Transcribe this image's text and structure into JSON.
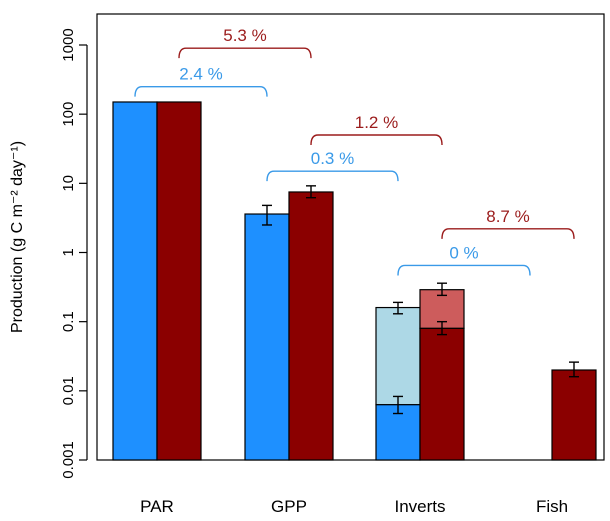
{
  "chart_data": {
    "type": "bar",
    "scale": "log",
    "ylim": [
      0.001,
      2000
    ],
    "ylabel": "Production (g C m⁻² day⁻¹)",
    "y_ticks": [
      {
        "value": 0.001,
        "label": "0.001"
      },
      {
        "value": 0.01,
        "label": "0.01"
      },
      {
        "value": 0.1,
        "label": "0.1"
      },
      {
        "value": 1,
        "label": "1"
      },
      {
        "value": 10,
        "label": "10"
      },
      {
        "value": 100,
        "label": "100"
      },
      {
        "value": 1000,
        "label": "1000"
      }
    ],
    "categories": [
      "PAR",
      "GPP",
      "Inverts",
      "Fish"
    ],
    "colors": {
      "blue": "#1e90ff",
      "red": "#8b0000",
      "blue_light": "#add8e6",
      "red_light": "#cd5c5c",
      "blue_label": "#3a9ae8",
      "red_label": "#9b1c1c"
    },
    "bars": [
      {
        "category": "PAR",
        "series": "blue",
        "value": 150,
        "base": 0.001,
        "fill": "blue"
      },
      {
        "category": "PAR",
        "series": "red",
        "value": 150,
        "base": 0.001,
        "fill": "red"
      },
      {
        "category": "GPP",
        "series": "blue",
        "value": 3.6,
        "base": 0.001,
        "fill": "blue",
        "err": [
          2.5,
          4.8
        ]
      },
      {
        "category": "GPP",
        "series": "red",
        "value": 7.5,
        "base": 0.001,
        "fill": "red",
        "err": [
          6.2,
          9.2
        ]
      },
      {
        "category": "Inverts",
        "series": "blue",
        "value": 0.16,
        "base": 0.0063,
        "fill": "blue_light",
        "err": [
          0.13,
          0.19
        ]
      },
      {
        "category": "Inverts",
        "series": "blue",
        "value": 0.0063,
        "base": 0.001,
        "fill": "blue",
        "err": [
          0.0047,
          0.0083
        ]
      },
      {
        "category": "Inverts",
        "series": "red",
        "value": 0.29,
        "base": 0.08,
        "fill": "red_light",
        "err": [
          0.24,
          0.36
        ]
      },
      {
        "category": "Inverts",
        "series": "red",
        "value": 0.08,
        "base": 0.001,
        "fill": "red",
        "err": [
          0.065,
          0.1
        ]
      },
      {
        "category": "Fish",
        "series": "red",
        "value": 0.02,
        "base": 0.001,
        "fill": "red",
        "err": [
          0.016,
          0.026
        ]
      }
    ],
    "annotations": [
      {
        "label": "2.4 %",
        "color": "blue_label",
        "from": "PAR",
        "to": "GPP",
        "series": "blue",
        "y": 250
      },
      {
        "label": "5.3 %",
        "color": "red_label",
        "from": "PAR",
        "to": "GPP",
        "series": "red",
        "y": 900
      },
      {
        "label": "0.3 %",
        "color": "blue_label",
        "from": "GPP",
        "to": "Inverts",
        "series": "blue",
        "y": 15
      },
      {
        "label": "1.2 %",
        "color": "red_label",
        "from": "GPP",
        "to": "Inverts",
        "series": "red",
        "y": 50
      },
      {
        "label": "0 %",
        "color": "blue_label",
        "from": "Inverts",
        "to": "Fish",
        "series": "blue",
        "y": 0.65
      },
      {
        "label": "8.7 %",
        "color": "red_label",
        "from": "Inverts",
        "to": "Fish",
        "series": "red",
        "y": 2.2
      }
    ]
  }
}
